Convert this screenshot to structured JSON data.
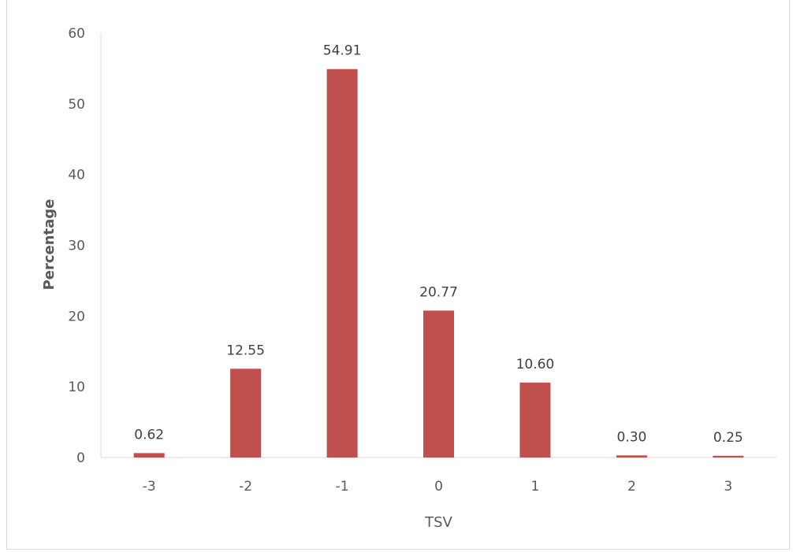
{
  "chart_data": {
    "type": "bar",
    "title": "",
    "xlabel": "TSV",
    "ylabel": "Percentage",
    "categories": [
      "-3",
      "-2",
      "-1",
      "0",
      "1",
      "2",
      "3"
    ],
    "values": [
      0.62,
      12.55,
      54.91,
      20.77,
      10.6,
      0.3,
      0.25
    ],
    "data_labels": [
      "0.62",
      "12.55",
      "54.91",
      "20.77",
      "10.60",
      "0.30",
      "0.25"
    ],
    "ylim": [
      0,
      60
    ],
    "yticks": [
      "0",
      "10",
      "20",
      "30",
      "40",
      "50",
      "60"
    ],
    "grid": false,
    "legend": "none",
    "bar_color": "#c0504d"
  }
}
